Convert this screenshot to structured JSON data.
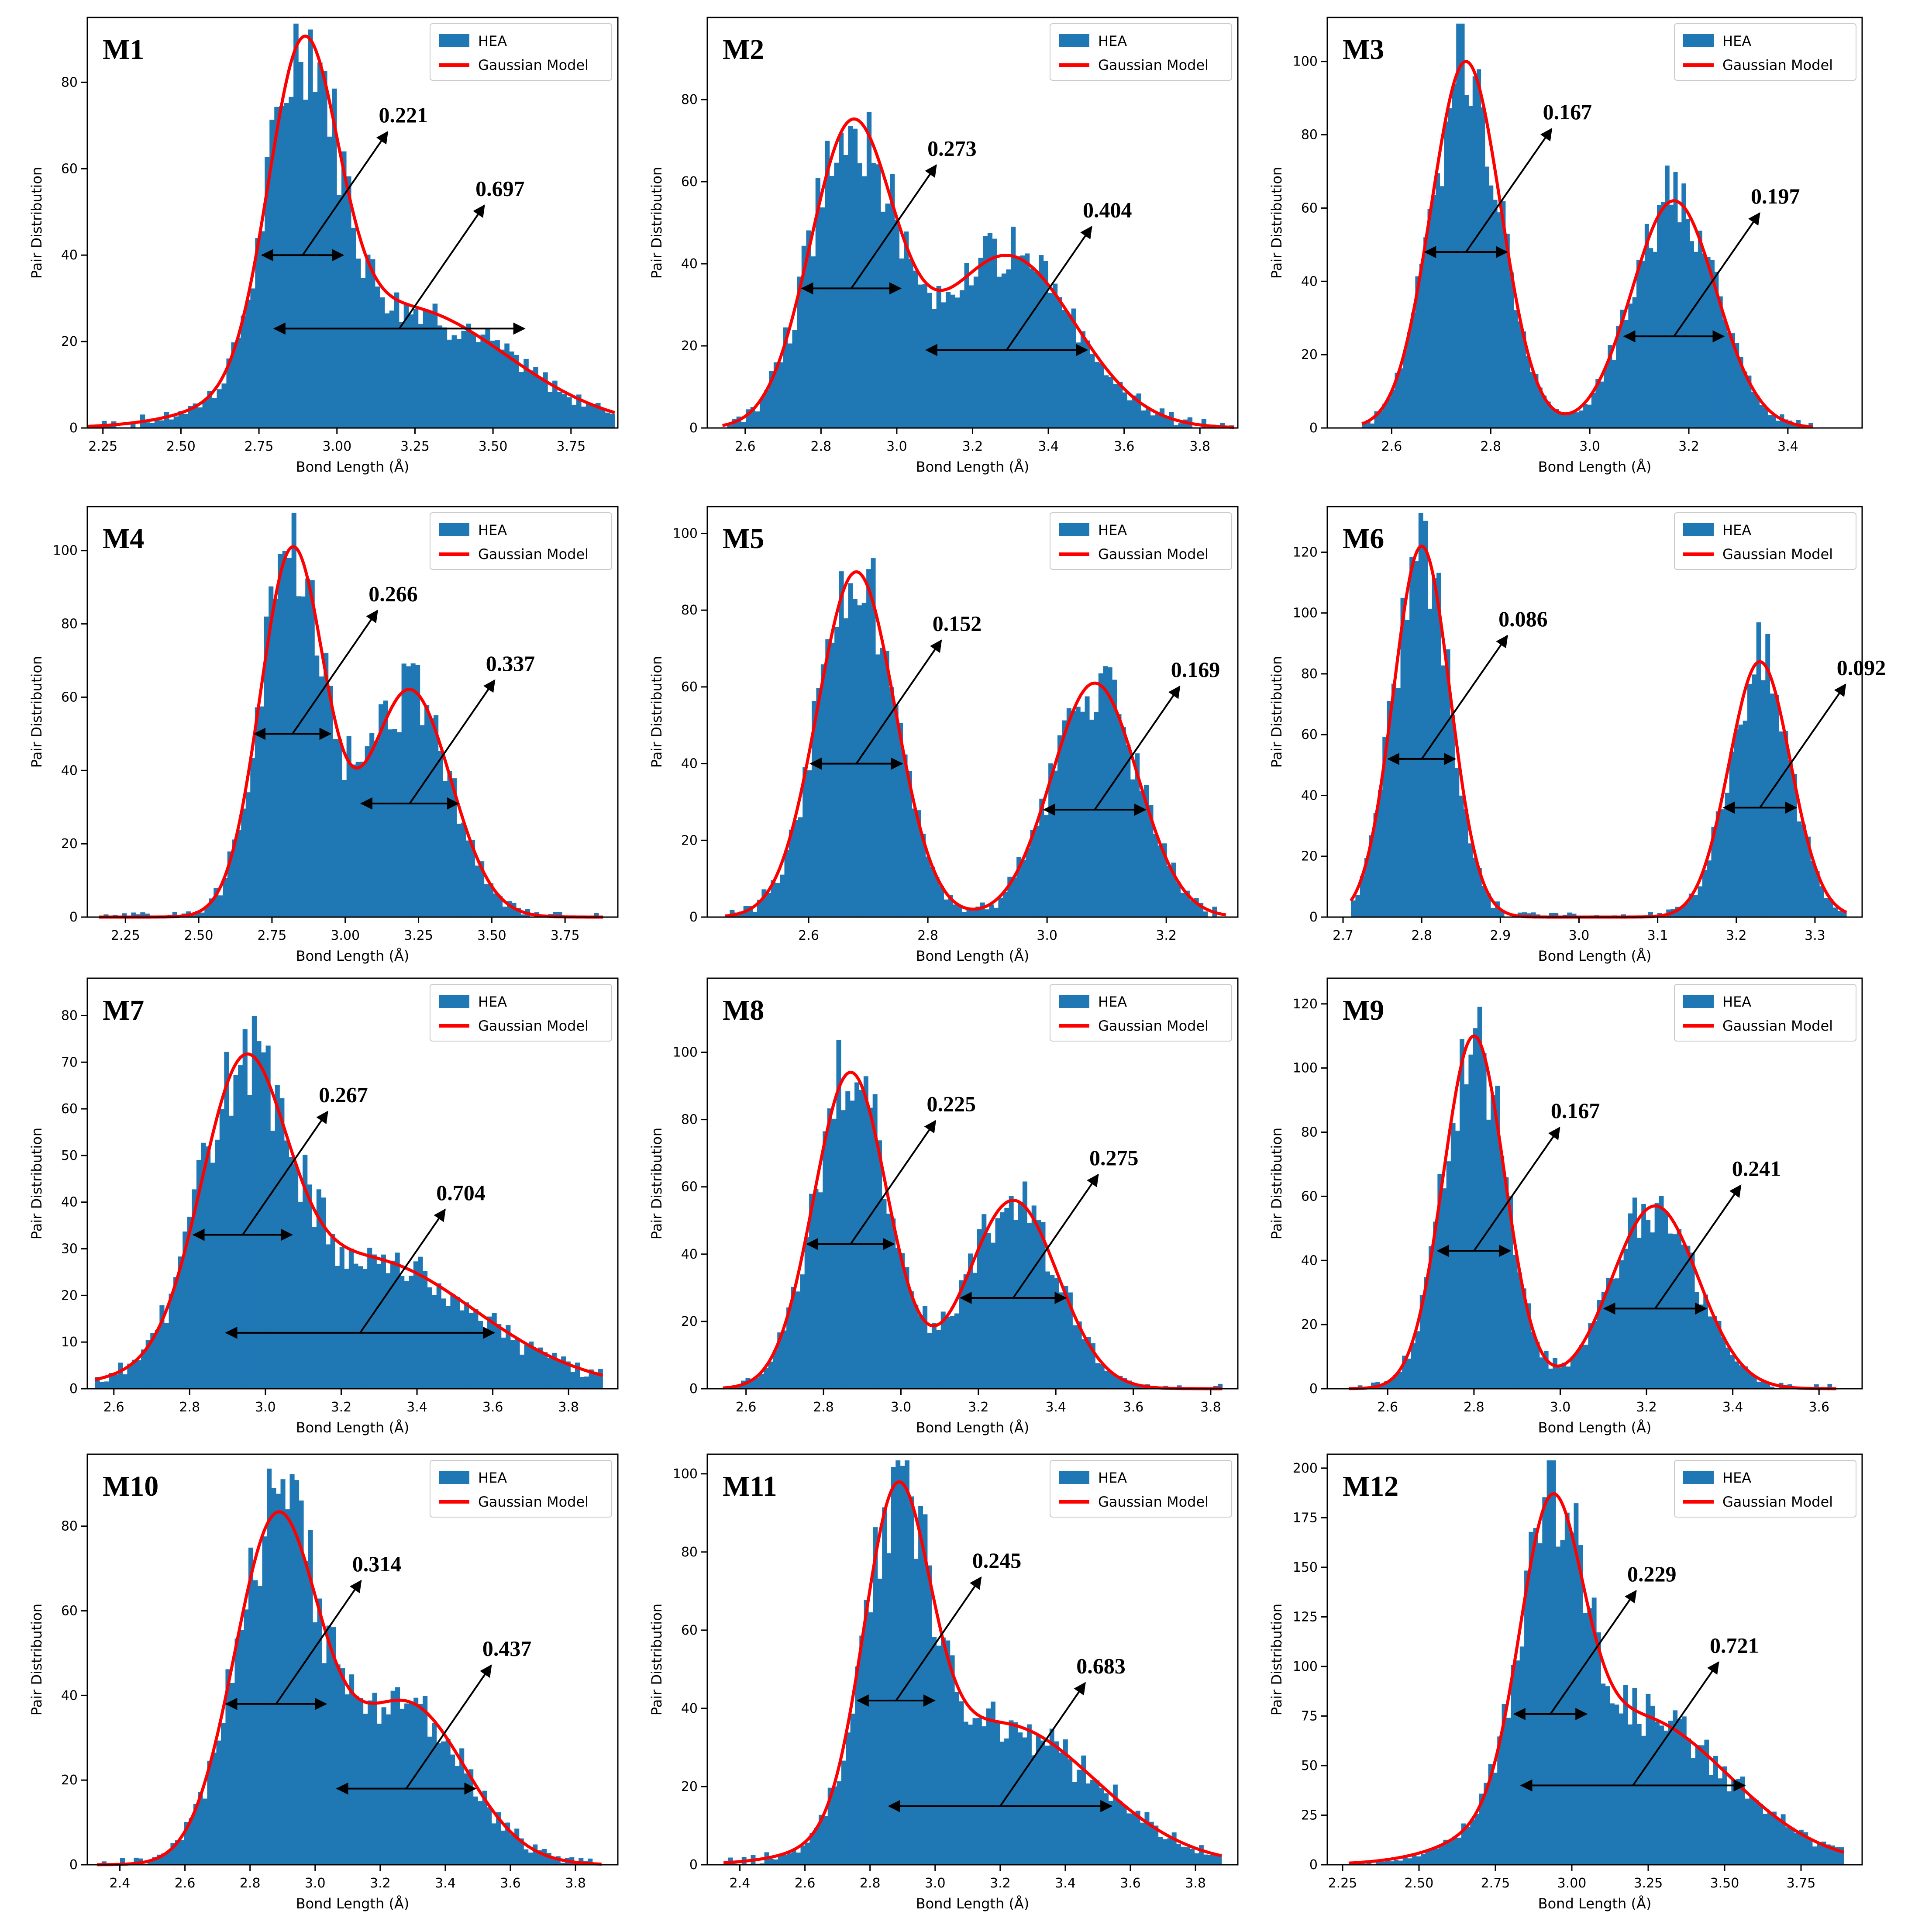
{
  "figure": {
    "description_free": true
  },
  "colors": {
    "hist": "#1f77b4",
    "fit": "#ff0000",
    "arrow": "#000000",
    "axes": "#000000"
  },
  "chart_data": [
    {
      "id": "M1",
      "type": "bar",
      "title": "M1",
      "xlabel": "Bond Length (Å)",
      "ylabel": "Pair Distribution",
      "legend": [
        "HEA",
        "Gaussian Model"
      ],
      "legend_loc": "top-right",
      "xlim": [
        2.2,
        3.9
      ],
      "ylim": [
        0,
        95
      ],
      "xticks": [
        "2.25",
        "2.50",
        "2.75",
        "3.00",
        "3.25",
        "3.50",
        "3.75"
      ],
      "yticks": [
        "0",
        "20",
        "40",
        "60",
        "80"
      ],
      "peaks": [
        {
          "mu": 2.89,
          "sigma": 0.11,
          "amp": 72
        },
        {
          "mu": 3.2,
          "sigma": 0.34,
          "amp": 28
        }
      ],
      "hist_range": [
        2.2,
        3.89
      ],
      "bins": 110,
      "fwhm": [
        {
          "label": "0.221",
          "y": 40
        },
        {
          "label": "0.697",
          "y": 23
        }
      ]
    },
    {
      "id": "M2",
      "type": "bar",
      "title": "M2",
      "xlabel": "Bond Length (Å)",
      "ylabel": "Pair Distribution",
      "legend": [
        "HEA",
        "Gaussian Model"
      ],
      "legend_loc": "top-right",
      "xlim": [
        2.5,
        3.9
      ],
      "ylim": [
        0,
        100
      ],
      "xticks": [
        "2.6",
        "2.8",
        "3.0",
        "3.2",
        "3.4",
        "3.6",
        "3.8"
      ],
      "yticks": [
        "0",
        "20",
        "40",
        "60",
        "80"
      ],
      "peaks": [
        {
          "mu": 2.88,
          "sigma": 0.11,
          "amp": 72
        },
        {
          "mu": 3.29,
          "sigma": 0.18,
          "amp": 42
        }
      ],
      "hist_range": [
        2.54,
        3.89
      ],
      "bins": 110,
      "fwhm": [
        {
          "label": "0.273",
          "y": 34
        },
        {
          "label": "0.404",
          "y": 19
        }
      ]
    },
    {
      "id": "M3",
      "type": "bar",
      "title": "M3",
      "xlabel": "Bond Length (Å)",
      "ylabel": "Pair Distribution",
      "legend": [
        "HEA",
        "Gaussian Model"
      ],
      "legend_loc": "top-right",
      "xlim": [
        2.47,
        3.55
      ],
      "ylim": [
        0,
        112
      ],
      "xticks": [
        "2.6",
        "2.8",
        "3.0",
        "3.2",
        "3.4"
      ],
      "yticks": [
        "0",
        "20",
        "40",
        "60",
        "80",
        "100"
      ],
      "peaks": [
        {
          "mu": 2.75,
          "sigma": 0.07,
          "amp": 100
        },
        {
          "mu": 3.17,
          "sigma": 0.085,
          "amp": 62
        }
      ],
      "hist_range": [
        2.54,
        3.45
      ],
      "bins": 110,
      "fwhm": [
        {
          "label": "0.167",
          "y": 48
        },
        {
          "label": "0.197",
          "y": 25
        }
      ]
    },
    {
      "id": "M4",
      "type": "bar",
      "title": "M4",
      "xlabel": "Bond Length (Å)",
      "ylabel": "Pair Distribution",
      "legend": [
        "HEA",
        "Gaussian Model"
      ],
      "legend_loc": "top-right",
      "xlim": [
        2.12,
        3.93
      ],
      "ylim": [
        0,
        112
      ],
      "xticks": [
        "2.25",
        "2.50",
        "2.75",
        "3.00",
        "3.25",
        "3.50",
        "3.75"
      ],
      "yticks": [
        "0",
        "20",
        "40",
        "60",
        "80",
        "100"
      ],
      "peaks": [
        {
          "mu": 2.82,
          "sigma": 0.11,
          "amp": 100
        },
        {
          "mu": 3.22,
          "sigma": 0.14,
          "amp": 62
        }
      ],
      "hist_range": [
        2.16,
        3.88
      ],
      "bins": 110,
      "fwhm": [
        {
          "label": "0.266",
          "y": 50
        },
        {
          "label": "0.337",
          "y": 31
        }
      ]
    },
    {
      "id": "M5",
      "type": "bar",
      "title": "M5",
      "xlabel": "Bond Length (Å)",
      "ylabel": "Pair Distribution",
      "legend": [
        "HEA",
        "Gaussian Model"
      ],
      "legend_loc": "top-right",
      "xlim": [
        2.43,
        3.32
      ],
      "ylim": [
        0,
        107
      ],
      "xticks": [
        "2.6",
        "2.8",
        "3.0",
        "3.2"
      ],
      "yticks": [
        "0",
        "20",
        "40",
        "60",
        "80",
        "100"
      ],
      "peaks": [
        {
          "mu": 2.68,
          "sigma": 0.065,
          "amp": 90
        },
        {
          "mu": 3.08,
          "sigma": 0.072,
          "amp": 61
        }
      ],
      "hist_range": [
        2.46,
        3.3
      ],
      "bins": 110,
      "fwhm": [
        {
          "label": "0.152",
          "y": 40
        },
        {
          "label": "0.169",
          "y": 28
        }
      ]
    },
    {
      "id": "M6",
      "type": "bar",
      "title": "M6",
      "xlabel": "Bond Length (Å)",
      "ylabel": "Pair Distribution",
      "legend": [
        "HEA",
        "Gaussian Model"
      ],
      "legend_loc": "top-right",
      "xlim": [
        2.68,
        3.36
      ],
      "ylim": [
        0,
        135
      ],
      "xticks": [
        "2.7",
        "2.8",
        "2.9",
        "3.0",
        "3.1",
        "3.2",
        "3.3"
      ],
      "yticks": [
        "0",
        "20",
        "40",
        "60",
        "80",
        "100",
        "120"
      ],
      "peaks": [
        {
          "mu": 2.8,
          "sigma": 0.036,
          "amp": 122
        },
        {
          "mu": 3.23,
          "sigma": 0.039,
          "amp": 84
        }
      ],
      "hist_range": [
        2.71,
        3.34
      ],
      "bins": 110,
      "fwhm": [
        {
          "label": "0.086",
          "y": 52
        },
        {
          "label": "0.092",
          "y": 36
        }
      ]
    },
    {
      "id": "M7",
      "type": "bar",
      "title": "M7",
      "xlabel": "Bond Length (Å)",
      "ylabel": "Pair Distribution",
      "legend": [
        "HEA",
        "Gaussian Model"
      ],
      "legend_loc": "top-right",
      "xlim": [
        2.53,
        3.93
      ],
      "ylim": [
        0,
        88
      ],
      "xticks": [
        "2.6",
        "2.8",
        "3.0",
        "3.2",
        "3.4",
        "3.6",
        "3.8"
      ],
      "yticks": [
        "0",
        "10",
        "20",
        "30",
        "40",
        "50",
        "60",
        "70",
        "80"
      ],
      "peaks": [
        {
          "mu": 2.94,
          "sigma": 0.11,
          "amp": 55
        },
        {
          "mu": 3.25,
          "sigma": 0.3,
          "amp": 28
        }
      ],
      "hist_range": [
        2.55,
        3.89
      ],
      "bins": 110,
      "fwhm": [
        {
          "label": "0.267",
          "y": 33
        },
        {
          "label": "0.704",
          "y": 12
        }
      ]
    },
    {
      "id": "M8",
      "type": "bar",
      "title": "M8",
      "xlabel": "Bond Length (Å)",
      "ylabel": "Pair Distribution",
      "legend": [
        "HEA",
        "Gaussian Model"
      ],
      "legend_loc": "top-right",
      "xlim": [
        2.5,
        3.87
      ],
      "ylim": [
        0,
        122
      ],
      "xticks": [
        "2.6",
        "2.8",
        "3.0",
        "3.2",
        "3.4",
        "3.6",
        "3.8"
      ],
      "yticks": [
        "0",
        "20",
        "40",
        "60",
        "80",
        "100"
      ],
      "peaks": [
        {
          "mu": 2.87,
          "sigma": 0.095,
          "amp": 94
        },
        {
          "mu": 3.29,
          "sigma": 0.115,
          "amp": 56
        }
      ],
      "hist_range": [
        2.54,
        3.83
      ],
      "bins": 110,
      "fwhm": [
        {
          "label": "0.225",
          "y": 43
        },
        {
          "label": "0.275",
          "y": 27
        }
      ]
    },
    {
      "id": "M9",
      "type": "bar",
      "title": "M9",
      "xlabel": "Bond Length (Å)",
      "ylabel": "Pair Distribution",
      "legend": [
        "HEA",
        "Gaussian Model"
      ],
      "legend_loc": "top-right",
      "xlim": [
        2.46,
        3.7
      ],
      "ylim": [
        0,
        128
      ],
      "xticks": [
        "2.6",
        "2.8",
        "3.0",
        "3.2",
        "3.4",
        "3.6"
      ],
      "yticks": [
        "0",
        "20",
        "40",
        "60",
        "80",
        "100",
        "120"
      ],
      "peaks": [
        {
          "mu": 2.8,
          "sigma": 0.071,
          "amp": 110
        },
        {
          "mu": 3.22,
          "sigma": 0.1,
          "amp": 57
        }
      ],
      "hist_range": [
        2.51,
        3.64
      ],
      "bins": 110,
      "fwhm": [
        {
          "label": "0.167",
          "y": 43
        },
        {
          "label": "0.241",
          "y": 25
        }
      ]
    },
    {
      "id": "M10",
      "type": "bar",
      "title": "M10",
      "xlabel": "Bond Length (Å)",
      "ylabel": "Pair Distribution",
      "legend": [
        "HEA",
        "Gaussian Model"
      ],
      "legend_loc": "top-right",
      "xlim": [
        2.3,
        3.93
      ],
      "ylim": [
        0,
        97
      ],
      "xticks": [
        "2.4",
        "2.6",
        "2.8",
        "3.0",
        "3.2",
        "3.4",
        "3.6",
        "3.8"
      ],
      "yticks": [
        "0",
        "20",
        "40",
        "60",
        "80"
      ],
      "peaks": [
        {
          "mu": 2.88,
          "sigma": 0.13,
          "amp": 80
        },
        {
          "mu": 3.28,
          "sigma": 0.18,
          "amp": 38
        }
      ],
      "hist_range": [
        2.33,
        3.88
      ],
      "bins": 110,
      "fwhm": [
        {
          "label": "0.314",
          "y": 38
        },
        {
          "label": "0.437",
          "y": 18
        }
      ]
    },
    {
      "id": "M11",
      "type": "bar",
      "title": "M11",
      "xlabel": "Bond Length (Å)",
      "ylabel": "Pair Distribution",
      "legend": [
        "HEA",
        "Gaussian Model"
      ],
      "legend_loc": "top-right",
      "xlim": [
        2.3,
        3.93
      ],
      "ylim": [
        0,
        105
      ],
      "xticks": [
        "2.4",
        "2.6",
        "2.8",
        "3.0",
        "3.2",
        "3.4",
        "3.6",
        "3.8"
      ],
      "yticks": [
        "0",
        "20",
        "40",
        "60",
        "80",
        "100"
      ],
      "peaks": [
        {
          "mu": 2.88,
          "sigma": 0.1,
          "amp": 78
        },
        {
          "mu": 3.2,
          "sigma": 0.29,
          "amp": 36
        }
      ],
      "hist_range": [
        2.35,
        3.88
      ],
      "bins": 110,
      "fwhm": [
        {
          "label": "0.245",
          "y": 42
        },
        {
          "label": "0.683",
          "y": 15
        }
      ]
    },
    {
      "id": "M12",
      "type": "bar",
      "title": "M12",
      "xlabel": "Bond Length (Å)",
      "ylabel": "Pair Distribution",
      "legend": [
        "HEA",
        "Gaussian Model"
      ],
      "legend_loc": "top-right",
      "xlim": [
        2.2,
        3.95
      ],
      "ylim": [
        0,
        207
      ],
      "xticks": [
        "2.25",
        "2.50",
        "2.75",
        "3.00",
        "3.25",
        "3.50",
        "3.75"
      ],
      "yticks": [
        "0",
        "25",
        "50",
        "75",
        "100",
        "125",
        "150",
        "175",
        "200"
      ],
      "peaks": [
        {
          "mu": 2.93,
          "sigma": 0.1,
          "amp": 135
        },
        {
          "mu": 3.2,
          "sigma": 0.31,
          "amp": 75
        }
      ],
      "hist_range": [
        2.27,
        3.89
      ],
      "bins": 110,
      "fwhm": [
        {
          "label": "0.229",
          "y": 76
        },
        {
          "label": "0.721",
          "y": 40
        }
      ]
    }
  ]
}
